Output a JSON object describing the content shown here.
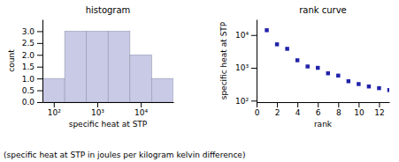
{
  "chart_data": [
    {
      "type": "histogram",
      "title": "histogram",
      "x_label": "specific heat at STP",
      "y_label": "count",
      "bins": [
        55,
        178,
        562,
        1778,
        5623,
        17783,
        56234
      ],
      "values": [
        1,
        3,
        3,
        3,
        2,
        1
      ],
      "color": "#c8cae6",
      "log": "x",
      "xlim": [
        54.954087385762,
        56234.13251903491
      ],
      "xticks": [
        {
          "value": 100,
          "label": "10²"
        },
        {
          "value": 1000,
          "label": "10³"
        },
        {
          "value": 10000,
          "label": "10⁴"
        }
      ],
      "ylim": [
        0,
        3.5
      ],
      "yticks": [
        {
          "value": 0,
          "label": "0.0"
        },
        0.5,
        {
          "value": 1,
          "label": "1.0"
        },
        1.5,
        {
          "value": 2,
          "label": "2.0"
        },
        2.5,
        {
          "value": 3,
          "label": "3.0"
        }
      ],
      "annotations": [
        "(specific heat at STP in joules per kilogram kelvin difference)"
      ]
    },
    {
      "type": "scatter",
      "title": "rank curve",
      "x_label": "rank",
      "y_label": "specific heat at STP",
      "x": [
        1,
        2,
        3,
        4,
        5,
        6,
        7,
        8,
        9,
        10,
        11,
        12,
        13
      ],
      "values": [
        14000,
        5200,
        3800,
        1700,
        1100,
        1000,
        680,
        580,
        390,
        320,
        270,
        240,
        210
      ],
      "color": "#2222aa",
      "marker": "square",
      "log": "y",
      "xlim": [
        0,
        13
      ],
      "xticks": [
        0,
        2,
        4,
        6,
        8,
        10,
        12
      ],
      "ylim": [
        90,
        30000
      ],
      "yticks": [
        {
          "value": 100,
          "label": "10²"
        },
        {
          "value": 1000,
          "label": "10³"
        },
        {
          "value": 10000,
          "label": "10⁴"
        }
      ]
    }
  ]
}
